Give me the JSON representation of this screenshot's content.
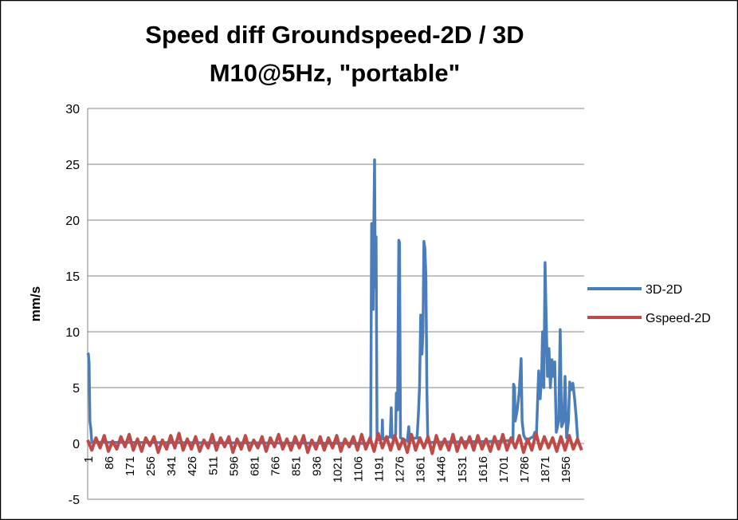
{
  "chart_data": {
    "type": "line",
    "title": [
      "Speed diff Groundspeed-2D / 3D",
      "M10@5Hz, \"portable\""
    ],
    "xlabel": "",
    "ylabel": "mm/s",
    "ylim": [
      -5,
      30
    ],
    "yticks": [
      -5,
      0,
      5,
      10,
      15,
      20,
      25,
      30
    ],
    "xlim": [
      1,
      2035
    ],
    "xticks": [
      "1",
      "86",
      "171",
      "256",
      "341",
      "426",
      "511",
      "596",
      "681",
      "766",
      "851",
      "936",
      "1021",
      "1106",
      "1191",
      "1276",
      "1361",
      "1446",
      "1531",
      "1616",
      "1701",
      "1786",
      "1871",
      "1956"
    ],
    "grid": true,
    "legend": "right",
    "series": [
      {
        "name": "3D-2D",
        "color": "#4a7ebb",
        "points": [
          [
            1,
            8.1
          ],
          [
            4,
            8.0
          ],
          [
            7,
            7.2
          ],
          [
            10,
            2.0
          ],
          [
            14,
            1.3
          ],
          [
            18,
            0.1
          ],
          [
            1150,
            0
          ],
          [
            1160,
            0.2
          ],
          [
            1164,
            19.7
          ],
          [
            1167,
            18
          ],
          [
            1170,
            12
          ],
          [
            1173,
            20
          ],
          [
            1176,
            25.4
          ],
          [
            1179,
            14
          ],
          [
            1182,
            18.5
          ],
          [
            1186,
            0.3
          ],
          [
            1206,
            0.5
          ],
          [
            1208,
            2.1
          ],
          [
            1210,
            0.4
          ],
          [
            1240,
            0.6
          ],
          [
            1244,
            3.2
          ],
          [
            1247,
            0.5
          ],
          [
            1262,
            0.8
          ],
          [
            1265,
            4.5
          ],
          [
            1270,
            3
          ],
          [
            1275,
            18.2
          ],
          [
            1278,
            18
          ],
          [
            1282,
            0.5
          ],
          [
            1310,
            0.2
          ],
          [
            1316,
            1.5
          ],
          [
            1320,
            0.4
          ],
          [
            1350,
            0.5
          ],
          [
            1355,
            2.5
          ],
          [
            1360,
            5
          ],
          [
            1365,
            11.5
          ],
          [
            1370,
            8
          ],
          [
            1374,
            10
          ],
          [
            1378,
            18.1
          ],
          [
            1382,
            17.5
          ],
          [
            1386,
            15
          ],
          [
            1390,
            5
          ],
          [
            1394,
            0.1
          ],
          [
            1700,
            0.2
          ],
          [
            1743,
            0.3
          ],
          [
            1745,
            5.3
          ],
          [
            1749,
            5
          ],
          [
            1752,
            2
          ],
          [
            1760,
            3
          ],
          [
            1768,
            4.5
          ],
          [
            1776,
            7.6
          ],
          [
            1780,
            2
          ],
          [
            1787,
            0.7
          ],
          [
            1800,
            0.2
          ],
          [
            1816,
            0.5
          ],
          [
            1826,
            0.6
          ],
          [
            1832,
            1
          ],
          [
            1838,
            0.4
          ],
          [
            1848,
            6.5
          ],
          [
            1854,
            4
          ],
          [
            1860,
            6
          ],
          [
            1864,
            10
          ],
          [
            1869,
            5
          ],
          [
            1874,
            16.2
          ],
          [
            1877,
            13
          ],
          [
            1880,
            10
          ],
          [
            1884,
            6
          ],
          [
            1890,
            8.5
          ],
          [
            1896,
            5
          ],
          [
            1902,
            7.5
          ],
          [
            1908,
            6
          ],
          [
            1914,
            7.3
          ],
          [
            1920,
            1
          ],
          [
            1930,
            2
          ],
          [
            1936,
            10.2
          ],
          [
            1942,
            1.5
          ],
          [
            1950,
            2
          ],
          [
            1956,
            6
          ],
          [
            1962,
            0.5
          ],
          [
            1970,
            2
          ],
          [
            1975,
            5.5
          ],
          [
            1981,
            4.8
          ],
          [
            1988,
            5.4
          ],
          [
            1995,
            4
          ],
          [
            2001,
            2.5
          ],
          [
            2008,
            0.3
          ]
        ]
      },
      {
        "name": "Gspeed-2D",
        "color": "#be4b48",
        "step": 17,
        "values": [
          0.3,
          -0.6,
          0.5,
          -0.4,
          0.7,
          -0.7,
          0.2,
          -0.5,
          0.6,
          -0.3,
          0.8,
          -0.6,
          0.4,
          -0.7,
          0.5,
          -0.2,
          0.6,
          -0.8,
          0.3,
          -0.5,
          0.7,
          -0.4,
          0.9,
          -0.6,
          0.4,
          -0.5,
          0.6,
          -0.7,
          0.3,
          -0.4,
          0.8,
          -0.6,
          0.5,
          -0.3,
          0.6,
          -0.8,
          0.4,
          -0.5,
          0.7,
          -0.6,
          0.3,
          -0.4,
          0.6,
          -0.7,
          0.5,
          -0.3,
          0.8,
          -0.5,
          0.4,
          -0.6,
          0.6,
          -0.4,
          0.7,
          -0.8,
          0.3,
          -0.5,
          0.6,
          -0.6,
          0.5,
          -0.4,
          0.7,
          -0.7,
          0.4,
          -0.3,
          0.6,
          -0.6,
          0.8,
          -0.5,
          0.5,
          -0.7,
          0.9,
          -0.4,
          0.6,
          -0.6,
          0.7,
          -0.5,
          0.4,
          -0.8,
          0.8,
          -0.6,
          0.5,
          -0.4,
          0.6,
          -0.9,
          0.7,
          -0.5,
          0.4,
          -0.6,
          0.8,
          -0.7,
          0.5,
          -0.4,
          0.6,
          -0.6,
          0.7,
          -0.5,
          0.4,
          -0.7,
          0.6,
          -0.5,
          0.8,
          -0.6,
          0.5,
          -0.4,
          0.7,
          -0.8,
          0.4,
          -0.6,
          0.9,
          -0.5,
          0.6,
          -0.4,
          0.5,
          -0.7,
          0.6,
          -0.6,
          0.7,
          -0.5,
          0.4,
          -0.6
        ]
      }
    ]
  }
}
